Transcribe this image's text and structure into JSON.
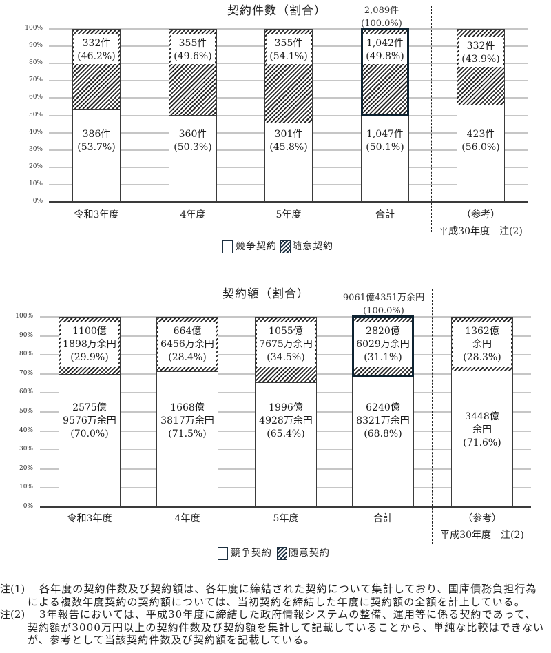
{
  "chart_data": [
    {
      "type": "bar",
      "stacked": true,
      "title": "契約件数（割合）",
      "categories": [
        "令和3年度",
        "4年度",
        "5年度",
        "合計",
        "（参考）平成30年度 注(2)"
      ],
      "xlabels": [
        [
          "令和3年度"
        ],
        [
          "4年度"
        ],
        [
          "5年度"
        ],
        [
          "合計"
        ],
        [
          "（参考）",
          "平成30年度　注(2)"
        ]
      ],
      "xlabel": "",
      "ylabel": "",
      "ylim": [
        0,
        100
      ],
      "yticks": [
        100,
        90,
        80,
        70,
        60,
        50,
        40,
        30,
        20,
        10,
        0
      ],
      "ytick_labels": [
        "100%",
        "90%",
        "80%",
        "70%",
        "60%",
        "50%",
        "40%",
        "30%",
        "20%",
        "10%",
        "0%"
      ],
      "grid": true,
      "legend": {
        "position": "bottom",
        "entries": [
          "競争契約",
          "随意契約"
        ]
      },
      "series": [
        {
          "name": "競争契約",
          "pattern": "plain",
          "values": [
            53.7,
            50.3,
            45.8,
            50.1,
            56.0
          ],
          "counts": [
            386,
            360,
            301,
            1047,
            423
          ],
          "labels": [
            [
              "386件",
              "(53.7%)"
            ],
            [
              "360件",
              "(50.3%)"
            ],
            [
              "301件",
              "(45.8%)"
            ],
            [
              "1,047件",
              "(50.1%)"
            ],
            [
              "423件",
              "(56.0%)"
            ]
          ]
        },
        {
          "name": "随意契約",
          "pattern": "hatched",
          "values": [
            46.2,
            49.6,
            54.1,
            49.8,
            43.9
          ],
          "counts": [
            332,
            355,
            355,
            1042,
            332
          ],
          "labels": [
            [
              "332件",
              "(46.2%)"
            ],
            [
              "355件",
              "(49.6%)"
            ],
            [
              "355件",
              "(54.1%)"
            ],
            [
              "1,042件",
              "(49.8%)"
            ],
            [
              "332件",
              "(43.9%)"
            ]
          ]
        }
      ],
      "total_annotation": {
        "category": "合計",
        "total": 2089,
        "lines": [
          "2,089件",
          "(100.0%)"
        ]
      },
      "highlighted_category": "合計"
    },
    {
      "type": "bar",
      "stacked": true,
      "title": "契約額（割合）",
      "categories": [
        "令和3年度",
        "4年度",
        "5年度",
        "合計",
        "（参考）平成30年度 注(2)"
      ],
      "xlabels": [
        [
          "令和3年度"
        ],
        [
          "4年度"
        ],
        [
          "5年度"
        ],
        [
          "合計"
        ],
        [
          "（参考）",
          "平成30年度　注(2)"
        ]
      ],
      "xlabel": "",
      "ylabel": "",
      "ylim": [
        0,
        100
      ],
      "yticks": [
        100,
        90,
        80,
        70,
        60,
        50,
        40,
        30,
        20,
        10,
        0
      ],
      "ytick_labels": [
        "100%",
        "90%",
        "80%",
        "70%",
        "60%",
        "50%",
        "40%",
        "30%",
        "20%",
        "10%",
        "0%"
      ],
      "grid": true,
      "legend": {
        "position": "bottom",
        "entries": [
          "競争契約",
          "随意契約"
        ]
      },
      "series": [
        {
          "name": "競争契約",
          "pattern": "plain",
          "values": [
            70.0,
            71.5,
            65.4,
            68.8,
            71.6
          ],
          "amounts_oku_yen": [
            2575.9576,
            1668.3817,
            1996.4928,
            6240.8321,
            3448
          ],
          "labels": [
            [
              "2575億",
              "9576万余円",
              "(70.0%)"
            ],
            [
              "1668億",
              "3817万余円",
              "(71.5%)"
            ],
            [
              "1996億",
              "4928万余円",
              "(65.4%)"
            ],
            [
              "6240億",
              "8321万余円",
              "(68.8%)"
            ],
            [
              "3448億",
              "余円",
              "(71.6%)"
            ]
          ]
        },
        {
          "name": "随意契約",
          "pattern": "hatched",
          "values": [
            29.9,
            28.4,
            34.5,
            31.1,
            28.3
          ],
          "amounts_oku_yen": [
            1100.1898,
            664.6456,
            1055.7675,
            2820.6029,
            1362
          ],
          "labels": [
            [
              "1100億",
              "1898万余円",
              "(29.9%)"
            ],
            [
              "664億",
              "6456万余円",
              "(28.4%)"
            ],
            [
              "1055億",
              "7675万余円",
              "(34.5%)"
            ],
            [
              "2820億",
              "6029万余円",
              "(31.1%)"
            ],
            [
              "1362億",
              "余円",
              "(28.3%)"
            ]
          ]
        }
      ],
      "total_annotation": {
        "category": "合計",
        "total_oku_yen": 9061.4351,
        "lines": [
          "9061億4351万余円",
          "(100.0%)"
        ]
      },
      "highlighted_category": "合計"
    }
  ],
  "notes": [
    {
      "label": "注(1)",
      "lines": [
        "各年度の契約件数及び契約額は、各年度に締結された契約について集計しており、国庫債務負担行為",
        "による複数年度契約の契約額については、当初契約を締結した年度に契約額の全額を計上している。"
      ]
    },
    {
      "label": "注(2)",
      "lines": [
        "3年報告においては、平成30年度に締結した政府情報システムの整備、運用等に係る契約であって、",
        "契約額が3000万円以上の契約件数及び契約額を集計して記載していることから、単純な比較はできない",
        "が、参考として当該契約件数及び契約額を記載している。"
      ]
    }
  ]
}
